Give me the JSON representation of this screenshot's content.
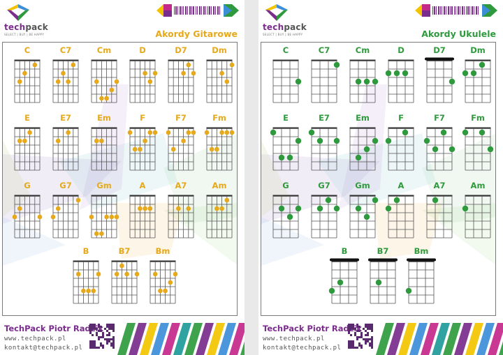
{
  "brand": {
    "name": "techpack",
    "tagline": "SELECT | BUY | BE HAPPY"
  },
  "colors": {
    "gold": "#e5a91b",
    "green": "#2f9a3d",
    "purple": "#7a2d8c",
    "magenta": "#c4288a",
    "yellow": "#f2c400",
    "blue": "#3d8ed9",
    "teal": "#1f9a9a"
  },
  "guitar": {
    "title": "Akordy Gitarowe",
    "chords": [
      {
        "name": "C",
        "dots": [
          [
            5,
            3
          ],
          [
            4,
            2
          ],
          [
            2,
            1
          ]
        ]
      },
      {
        "name": "C7",
        "dots": [
          [
            5,
            3
          ],
          [
            4,
            2
          ],
          [
            3,
            3
          ],
          [
            2,
            1
          ]
        ]
      },
      {
        "name": "Cm",
        "dots": [
          [
            5,
            3
          ],
          [
            4,
            5
          ],
          [
            3,
            5
          ],
          [
            2,
            4
          ],
          [
            1,
            3
          ]
        ]
      },
      {
        "name": "D",
        "dots": [
          [
            3,
            2
          ],
          [
            2,
            3
          ],
          [
            1,
            2
          ]
        ]
      },
      {
        "name": "D7",
        "dots": [
          [
            3,
            2
          ],
          [
            2,
            1
          ],
          [
            1,
            2
          ]
        ]
      },
      {
        "name": "Dm",
        "dots": [
          [
            3,
            2
          ],
          [
            2,
            3
          ],
          [
            1,
            1
          ]
        ]
      },
      {
        "name": "E",
        "dots": [
          [
            5,
            2
          ],
          [
            4,
            2
          ],
          [
            3,
            1
          ]
        ]
      },
      {
        "name": "E7",
        "dots": [
          [
            5,
            2
          ],
          [
            3,
            1
          ]
        ]
      },
      {
        "name": "Em",
        "dots": [
          [
            5,
            2
          ],
          [
            4,
            2
          ]
        ]
      },
      {
        "name": "F",
        "dots": [
          [
            6,
            1
          ],
          [
            5,
            3
          ],
          [
            4,
            3
          ],
          [
            3,
            2
          ],
          [
            2,
            1
          ],
          [
            1,
            1
          ]
        ]
      },
      {
        "name": "F7",
        "dots": [
          [
            6,
            1
          ],
          [
            5,
            3
          ],
          [
            3,
            2
          ],
          [
            2,
            1
          ],
          [
            1,
            1
          ]
        ]
      },
      {
        "name": "Fm",
        "dots": [
          [
            6,
            1
          ],
          [
            5,
            3
          ],
          [
            4,
            3
          ],
          [
            3,
            1
          ],
          [
            2,
            1
          ],
          [
            1,
            1
          ]
        ]
      },
      {
        "name": "G",
        "dots": [
          [
            6,
            3
          ],
          [
            5,
            2
          ],
          [
            1,
            3
          ]
        ]
      },
      {
        "name": "G7",
        "dots": [
          [
            6,
            3
          ],
          [
            5,
            2
          ],
          [
            1,
            1
          ]
        ]
      },
      {
        "name": "Gm",
        "dots": [
          [
            6,
            3
          ],
          [
            5,
            5
          ],
          [
            4,
            5
          ],
          [
            3,
            3
          ],
          [
            2,
            3
          ],
          [
            1,
            3
          ]
        ]
      },
      {
        "name": "A",
        "dots": [
          [
            4,
            2
          ],
          [
            3,
            2
          ],
          [
            2,
            2
          ]
        ]
      },
      {
        "name": "A7",
        "dots": [
          [
            4,
            2
          ],
          [
            2,
            2
          ]
        ]
      },
      {
        "name": "Am",
        "dots": [
          [
            4,
            2
          ],
          [
            3,
            2
          ],
          [
            2,
            1
          ]
        ]
      },
      {
        "name": "B",
        "dots": [
          [
            5,
            2
          ],
          [
            4,
            4
          ],
          [
            3,
            4
          ],
          [
            2,
            4
          ],
          [
            1,
            2
          ]
        ]
      },
      {
        "name": "B7",
        "dots": [
          [
            5,
            2
          ],
          [
            4,
            1
          ],
          [
            3,
            2
          ],
          [
            1,
            2
          ]
        ]
      },
      {
        "name": "Bm",
        "dots": [
          [
            5,
            2
          ],
          [
            4,
            4
          ],
          [
            3,
            4
          ],
          [
            2,
            3
          ],
          [
            1,
            2
          ]
        ]
      }
    ]
  },
  "ukulele": {
    "title": "Akordy Ukulele",
    "chords": [
      {
        "name": "C",
        "dots": [
          [
            1,
            3
          ]
        ]
      },
      {
        "name": "C7",
        "dots": [
          [
            1,
            1
          ]
        ]
      },
      {
        "name": "Cm",
        "dots": [
          [
            3,
            3
          ],
          [
            2,
            3
          ],
          [
            1,
            3
          ]
        ]
      },
      {
        "name": "D",
        "dots": [
          [
            4,
            2
          ],
          [
            3,
            2
          ],
          [
            2,
            2
          ]
        ]
      },
      {
        "name": "D7",
        "barre": 2,
        "dots": [
          [
            1,
            3
          ]
        ]
      },
      {
        "name": "Dm",
        "dots": [
          [
            4,
            2
          ],
          [
            3,
            2
          ],
          [
            2,
            1
          ]
        ]
      },
      {
        "name": "E",
        "dots": [
          [
            4,
            1
          ],
          [
            3,
            4
          ],
          [
            2,
            4
          ],
          [
            1,
            2
          ]
        ]
      },
      {
        "name": "E7",
        "dots": [
          [
            4,
            1
          ],
          [
            3,
            2
          ],
          [
            1,
            2
          ]
        ]
      },
      {
        "name": "Em",
        "dots": [
          [
            3,
            4
          ],
          [
            2,
            3
          ],
          [
            1,
            2
          ]
        ]
      },
      {
        "name": "F",
        "dots": [
          [
            4,
            2
          ],
          [
            2,
            1
          ]
        ]
      },
      {
        "name": "F7",
        "dots": [
          [
            4,
            2
          ],
          [
            3,
            3
          ],
          [
            2,
            1
          ],
          [
            1,
            3
          ]
        ]
      },
      {
        "name": "Fm",
        "dots": [
          [
            4,
            1
          ],
          [
            2,
            1
          ],
          [
            1,
            3
          ]
        ]
      },
      {
        "name": "G",
        "dots": [
          [
            3,
            2
          ],
          [
            2,
            3
          ],
          [
            1,
            2
          ]
        ]
      },
      {
        "name": "G7",
        "dots": [
          [
            3,
            2
          ],
          [
            2,
            1
          ],
          [
            1,
            2
          ]
        ]
      },
      {
        "name": "Gm",
        "dots": [
          [
            3,
            2
          ],
          [
            2,
            3
          ],
          [
            1,
            1
          ]
        ]
      },
      {
        "name": "A",
        "dots": [
          [
            4,
            2
          ],
          [
            3,
            1
          ]
        ]
      },
      {
        "name": "A7",
        "dots": [
          [
            3,
            1
          ]
        ]
      },
      {
        "name": "Am",
        "dots": [
          [
            4,
            2
          ]
        ]
      },
      {
        "name": "B",
        "barre": 2,
        "dots": [
          [
            4,
            4
          ],
          [
            3,
            3
          ]
        ]
      },
      {
        "name": "B7",
        "barre": 2,
        "dots": [
          [
            3,
            3
          ]
        ]
      },
      {
        "name": "Bm",
        "barre": 2,
        "dots": [
          [
            4,
            4
          ]
        ]
      }
    ]
  },
  "footer": {
    "company": "TechPack Piotr Radzik",
    "website": "www.techpack.pl",
    "email": "kontakt@techpack.pl"
  }
}
